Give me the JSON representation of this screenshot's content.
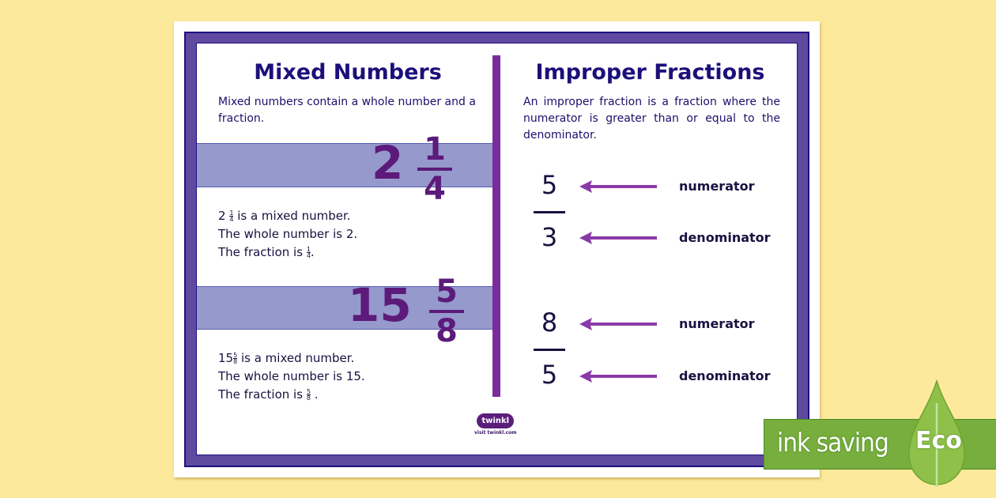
{
  "left": {
    "title": "Mixed Numbers",
    "desc": "Mixed numbers contain a whole number and a fraction.",
    "ex1": {
      "whole": "2",
      "num": "1",
      "den": "4",
      "line1": "is a mixed number.",
      "line2": "The whole number is 2.",
      "line3": "The fraction is"
    },
    "ex2": {
      "whole": "15",
      "num": "5",
      "den": "8",
      "line1": "is a mixed number.",
      "line2": "The whole number is 15.",
      "line3": "The fraction is"
    }
  },
  "right": {
    "title": "Improper Fractions",
    "desc": "An improper fraction is a fraction where the numerator is greater than or equal to the denominator.",
    "fractions": [
      {
        "num": "5",
        "den": "3"
      },
      {
        "num": "8",
        "den": "5"
      }
    ],
    "num_label": "numerator",
    "den_label": "denominator"
  },
  "logo": {
    "name": "twinkl",
    "url_text": "visit twinkl.com"
  },
  "badge": {
    "text": "ink saving",
    "eco": "Eco"
  },
  "colors": {
    "background": "#fde99c",
    "frame": "#5f4aa0",
    "accent": "#7a2c9e",
    "band": "#9599cc",
    "eco": "#77ae3e"
  }
}
